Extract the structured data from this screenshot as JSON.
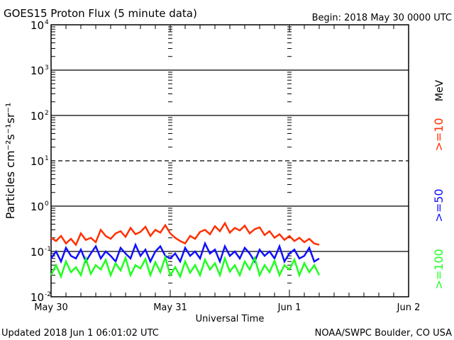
{
  "chart_data": {
    "type": "line",
    "title": "GOES15 Proton Flux (5 minute data)",
    "begin": "Begin: 2018 May 30 0000 UTC",
    "xlabel": "Universal Time",
    "ylabel": "Particles cm⁻²s⁻¹sr⁻¹",
    "yscale": "log",
    "ylim": [
      0.01,
      10000
    ],
    "ytick_exponents": [
      "4",
      "3",
      "2",
      "1",
      "0",
      "-1",
      "-2"
    ],
    "xlim_hours": [
      0,
      72
    ],
    "xtick_labels": [
      "May 30",
      "May 31",
      "Jun 1",
      "Jun 2"
    ],
    "units_label": "MeV",
    "x_hours_start": 0,
    "x_hours_step": 1,
    "series": [
      {
        "name": ">=10",
        "color": "#ff3000",
        "values": [
          0.2,
          0.17,
          0.22,
          0.15,
          0.19,
          0.14,
          0.25,
          0.18,
          0.2,
          0.16,
          0.3,
          0.22,
          0.19,
          0.25,
          0.28,
          0.21,
          0.33,
          0.24,
          0.27,
          0.35,
          0.22,
          0.3,
          0.26,
          0.38,
          0.25,
          0.2,
          0.17,
          0.15,
          0.22,
          0.19,
          0.27,
          0.3,
          0.24,
          0.36,
          0.28,
          0.42,
          0.26,
          0.33,
          0.29,
          0.37,
          0.25,
          0.31,
          0.34,
          0.23,
          0.28,
          0.2,
          0.24,
          0.18,
          0.22,
          0.17,
          0.2,
          0.16,
          0.19,
          0.15,
          0.14
        ]
      },
      {
        "name": ">=50",
        "color": "#1010ff",
        "values": [
          0.07,
          0.1,
          0.06,
          0.12,
          0.08,
          0.07,
          0.11,
          0.06,
          0.09,
          0.13,
          0.07,
          0.1,
          0.08,
          0.06,
          0.12,
          0.09,
          0.07,
          0.14,
          0.08,
          0.11,
          0.06,
          0.1,
          0.13,
          0.08,
          0.07,
          0.09,
          0.06,
          0.12,
          0.08,
          0.1,
          0.07,
          0.15,
          0.09,
          0.11,
          0.06,
          0.13,
          0.08,
          0.1,
          0.07,
          0.12,
          0.09,
          0.06,
          0.11,
          0.08,
          0.1,
          0.07,
          0.13,
          0.06,
          0.09,
          0.11,
          0.07,
          0.08,
          0.12,
          0.06,
          0.07
        ]
      },
      {
        "name": ">=100",
        "color": "#20ff20",
        "values": [
          0.03,
          0.05,
          0.028,
          0.06,
          0.035,
          0.045,
          0.03,
          0.07,
          0.032,
          0.05,
          0.04,
          0.065,
          0.03,
          0.055,
          0.038,
          0.072,
          0.03,
          0.05,
          0.042,
          0.068,
          0.03,
          0.058,
          0.035,
          0.074,
          0.03,
          0.045,
          0.028,
          0.06,
          0.034,
          0.05,
          0.03,
          0.066,
          0.04,
          0.055,
          0.03,
          0.07,
          0.036,
          0.05,
          0.03,
          0.06,
          0.04,
          0.072,
          0.03,
          0.05,
          0.035,
          0.062,
          0.03,
          0.05,
          0.04,
          0.066,
          0.03,
          0.055,
          0.035,
          0.05,
          0.03
        ]
      }
    ],
    "grid": "solid at 1e3,1e2,1e0,1e-1; dashed at 1e1",
    "legend_placement": "right"
  },
  "footer": {
    "updated": "Updated 2018 Jun  1 06:01:02 UTC",
    "credit": "NOAA/SWPC Boulder, CO USA"
  }
}
